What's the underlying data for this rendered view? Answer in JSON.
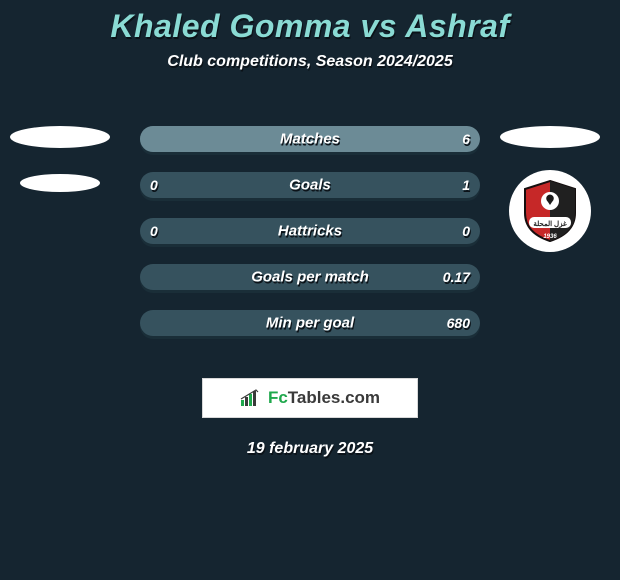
{
  "title": "Khaled Gomma vs Ashraf",
  "subtitle": "Club competitions, Season 2024/2025",
  "date_text": "19 february 2025",
  "colors": {
    "background": "#152530",
    "accent": "#8adbd4",
    "bar_fill": "#36525e",
    "bar_highlight": "#6c8b96",
    "text": "#ffffff"
  },
  "brand": {
    "prefix": "Fc",
    "suffix": "Tables.com",
    "icon_name": "bar-chart-icon"
  },
  "player_left": {
    "name": "Khaled Gomma",
    "badge_shape": "ellipse-placeholder"
  },
  "player_right": {
    "name": "Ashraf",
    "badge_shape": "club-crest",
    "crest_year": "1936"
  },
  "stats": [
    {
      "label": "Matches",
      "left_value": "",
      "right_value": "6",
      "left_highlight_pct": 0,
      "right_highlight_pct": 100
    },
    {
      "label": "Goals",
      "left_value": "0",
      "right_value": "1",
      "left_highlight_pct": 0,
      "right_highlight_pct": 0
    },
    {
      "label": "Hattricks",
      "left_value": "0",
      "right_value": "0",
      "left_highlight_pct": 0,
      "right_highlight_pct": 0
    },
    {
      "label": "Goals per match",
      "left_value": "",
      "right_value": "0.17",
      "left_highlight_pct": 0,
      "right_highlight_pct": 0
    },
    {
      "label": "Min per goal",
      "left_value": "",
      "right_value": "680",
      "left_highlight_pct": 0,
      "right_highlight_pct": 0
    }
  ]
}
